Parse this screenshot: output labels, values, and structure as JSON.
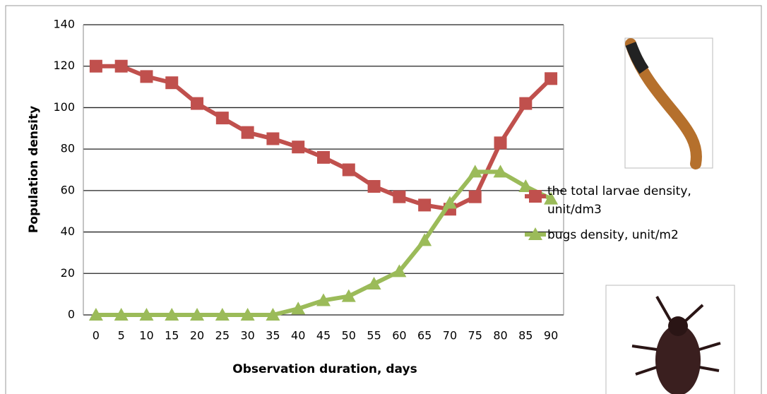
{
  "chart_data": {
    "type": "line",
    "x_label": "Observation duration, days",
    "y_label": "Population density",
    "categories": [
      0,
      5,
      10,
      15,
      20,
      25,
      30,
      35,
      40,
      45,
      50,
      55,
      60,
      65,
      70,
      75,
      80,
      85,
      90
    ],
    "series": [
      {
        "name": "the total larvae density, unit/dm3",
        "color": "#c0504d",
        "marker": "square",
        "values": [
          120,
          120,
          115,
          112,
          102,
          95,
          88,
          85,
          81,
          76,
          70,
          62,
          57,
          53,
          51,
          57,
          83,
          102,
          114
        ]
      },
      {
        "name": "bugs density, unit/m2",
        "color": "#9bbb59",
        "marker": "triangle",
        "values": [
          0,
          0,
          0,
          0,
          0,
          0,
          0,
          0,
          3,
          7,
          9,
          15,
          21,
          36,
          54,
          69,
          69,
          62,
          56
        ]
      }
    ],
    "ylim": [
      0,
      140
    ],
    "yticks": [
      0,
      20,
      40,
      60,
      80,
      100,
      120,
      140
    ],
    "grid": true
  }
}
